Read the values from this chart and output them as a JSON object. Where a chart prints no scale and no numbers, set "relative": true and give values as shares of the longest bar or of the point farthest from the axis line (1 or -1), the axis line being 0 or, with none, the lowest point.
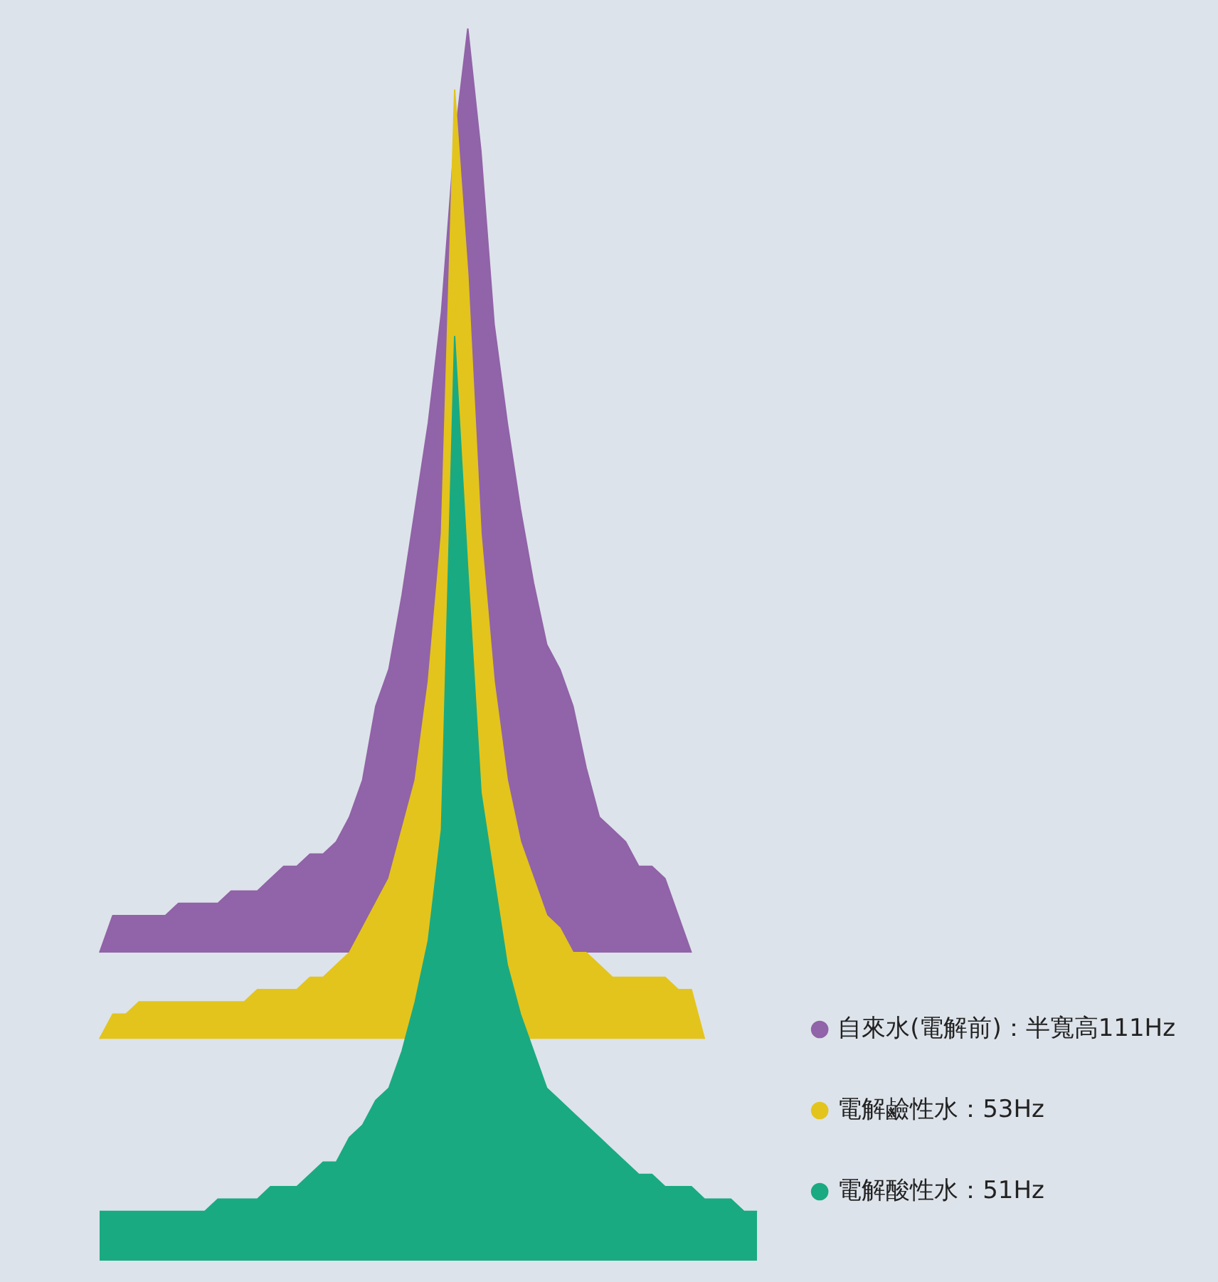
{
  "chart_data": {
    "type": "area",
    "relative": true,
    "legend": "bottom right",
    "marker": "none",
    "categories": [
      null,
      null,
      null,
      null,
      null,
      null,
      null,
      null,
      null,
      null,
      null,
      null,
      null,
      null,
      null,
      null,
      null,
      null,
      null,
      null,
      null,
      null,
      null,
      null,
      null,
      null,
      null,
      null,
      null,
      null,
      null,
      null,
      null,
      null,
      null,
      null,
      null,
      null,
      null,
      null,
      null,
      null,
      null,
      null,
      null,
      null,
      null,
      null,
      null,
      null,
      null
    ],
    "series": [
      {
        "name": "自來水(電解前)：半寬高111Hz",
        "color": "#9163a8",
        "values": [
          0.25,
          0.28,
          0.28,
          0.28,
          0.28,
          0.28,
          0.29,
          0.29,
          0.29,
          0.29,
          0.3,
          0.3,
          0.3,
          0.31,
          0.32,
          0.32,
          0.33,
          0.33,
          0.34,
          0.36,
          0.39,
          0.45,
          0.48,
          0.54,
          0.61,
          0.68,
          0.77,
          0.91,
          1,
          0.9,
          0.76,
          0.68,
          0.61,
          0.55,
          0.5,
          0.48,
          0.45,
          0.4,
          0.36,
          0.35,
          0.34,
          0.32,
          0.32,
          0.31,
          0.28,
          0.25,
          null,
          null,
          null,
          null,
          null
        ]
      },
      {
        "name": "電解鹼性水：53Hz",
        "color": "#e3c41c",
        "values": [
          0.18,
          0.2,
          0.2,
          0.21,
          0.21,
          0.21,
          0.21,
          0.21,
          0.21,
          0.21,
          0.21,
          0.21,
          0.22,
          0.22,
          0.22,
          0.22,
          0.23,
          0.23,
          0.24,
          0.25,
          0.27,
          0.29,
          0.31,
          0.35,
          0.39,
          0.47,
          0.59,
          0.95,
          0.8,
          0.59,
          0.47,
          0.39,
          0.34,
          0.31,
          0.28,
          0.27,
          0.25,
          0.25,
          0.24,
          0.23,
          0.23,
          0.23,
          0.23,
          0.23,
          0.22,
          0.22,
          0.18,
          null,
          null,
          null,
          null
        ]
      },
      {
        "name": "電解酸性水：51Hz",
        "color": "#1aaa82",
        "values": [
          0.04,
          0.04,
          0.04,
          0.04,
          0.04,
          0.04,
          0.04,
          0.04,
          0.04,
          0.05,
          0.05,
          0.05,
          0.05,
          0.06,
          0.06,
          0.06,
          0.07,
          0.08,
          0.08,
          0.1,
          0.11,
          0.13,
          0.14,
          0.17,
          0.21,
          0.26,
          0.35,
          0.75,
          0.56,
          0.38,
          0.31,
          0.24,
          0.2,
          0.17,
          0.14,
          0.13,
          0.12,
          0.11,
          0.1,
          0.09,
          0.08,
          0.07,
          0.07,
          0.06,
          0.06,
          0.06,
          0.05,
          0.05,
          0.05,
          0.04,
          0.04
        ]
      }
    ]
  }
}
